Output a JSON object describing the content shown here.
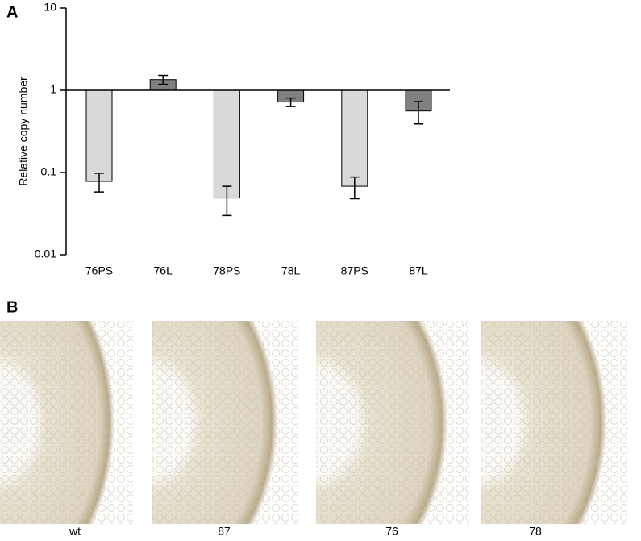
{
  "chart_data": {
    "type": "bar",
    "ylabel": "Relative copy number",
    "categories": [
      "76PS",
      "76L",
      "78PS",
      "78L",
      "87PS",
      "87L"
    ],
    "values": [
      0.078,
      1.35,
      0.049,
      0.72,
      0.068,
      0.56
    ],
    "errors": [
      0.02,
      0.17,
      0.019,
      0.085,
      0.02,
      0.17
    ],
    "colors": [
      "#d9d9d9",
      "#808080",
      "#d9d9d9",
      "#808080",
      "#d9d9d9",
      "#808080"
    ],
    "log_scale": true,
    "baseline": 1,
    "ylim": [
      0.01,
      10
    ],
    "yticks": [
      0.01,
      0.1,
      1,
      10
    ]
  },
  "panels": [
    "A",
    "B"
  ],
  "images": [
    {
      "label": "wt"
    },
    {
      "label": "87"
    },
    {
      "label": "76"
    },
    {
      "label": "78"
    }
  ]
}
